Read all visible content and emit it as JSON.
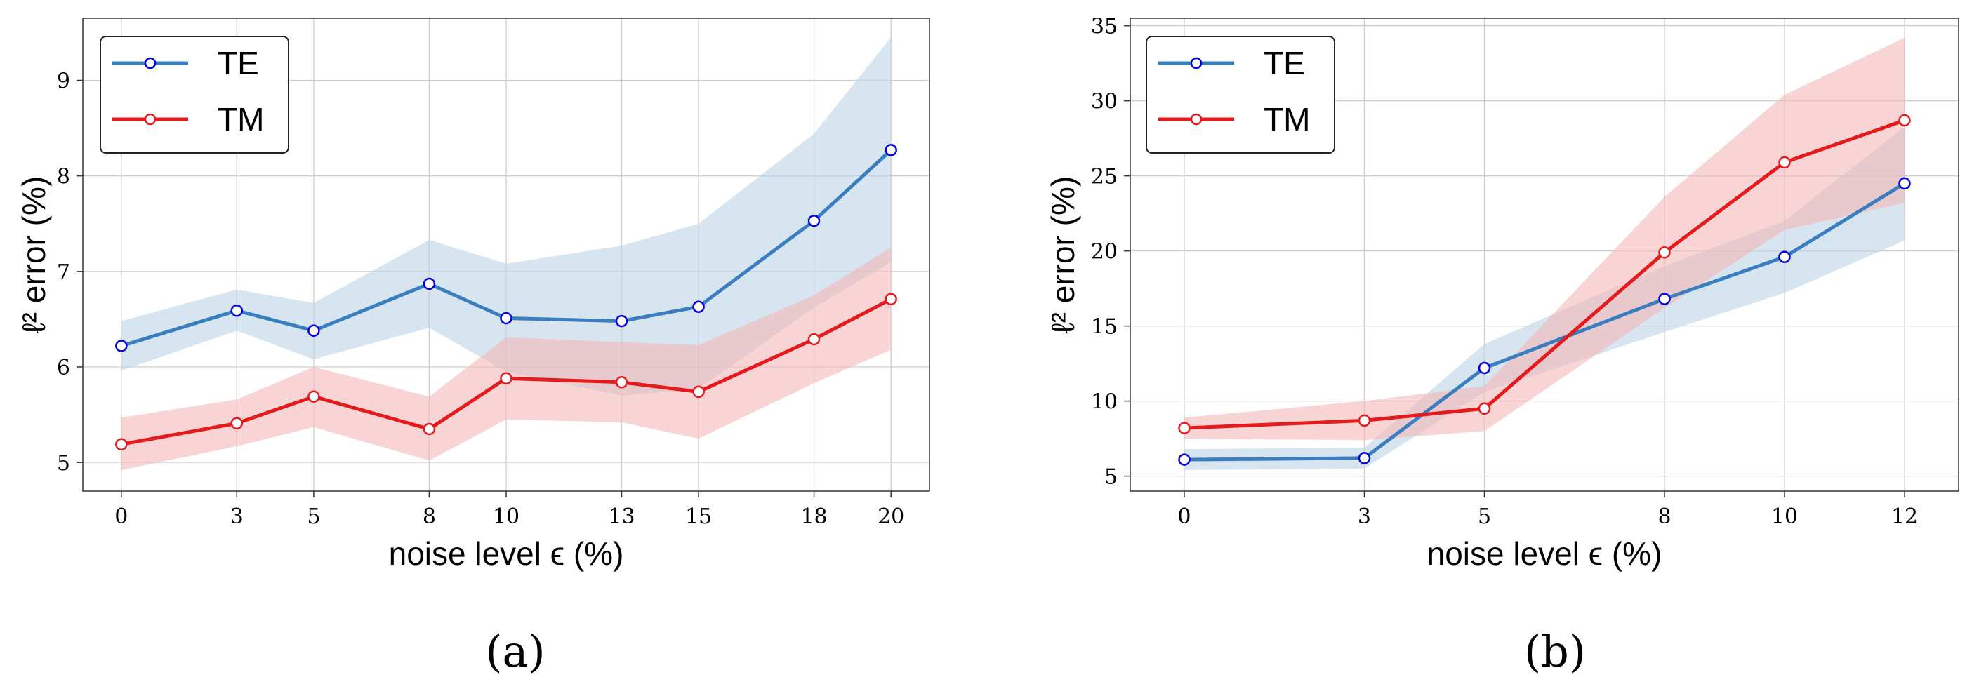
{
  "chart_data": [
    {
      "type": "line",
      "panel_label": "(a)",
      "xlabel": "noise level ϵ (%)",
      "ylabel": "ℓ² error (%)",
      "x": [
        0,
        3,
        5,
        8,
        10,
        13,
        15,
        18,
        20
      ],
      "x_tick_labels": [
        "0",
        "3",
        "5",
        "8",
        "10",
        "13",
        "15",
        "18",
        "20"
      ],
      "xlim": [
        -1,
        21
      ],
      "ylim": [
        4.7,
        9.65
      ],
      "y_ticks": [
        5,
        6,
        7,
        8,
        9
      ],
      "grid": true,
      "legend_position": "top-left",
      "series": [
        {
          "name": "TE",
          "color": "#3a7ebf",
          "band_color": "#bcd3e8",
          "values": [
            6.22,
            6.59,
            6.38,
            6.87,
            6.51,
            6.48,
            6.63,
            7.53,
            8.27
          ],
          "upper": [
            6.48,
            6.81,
            6.67,
            7.33,
            7.08,
            7.27,
            7.5,
            8.44,
            9.45
          ],
          "lower": [
            5.96,
            6.38,
            6.08,
            6.41,
            5.95,
            5.7,
            5.77,
            6.62,
            7.1
          ]
        },
        {
          "name": "TM",
          "color": "#e41a1c",
          "band_color": "#f4b7b8",
          "values": [
            5.19,
            5.41,
            5.69,
            5.35,
            5.88,
            5.84,
            5.74,
            6.29,
            6.71
          ],
          "upper": [
            5.47,
            5.66,
            6.0,
            5.69,
            6.31,
            6.26,
            6.23,
            6.75,
            7.25
          ],
          "lower": [
            4.92,
            5.17,
            5.37,
            5.02,
            5.45,
            5.42,
            5.25,
            5.83,
            6.18
          ]
        }
      ]
    },
    {
      "type": "line",
      "panel_label": "(b)",
      "xlabel": "noise level ϵ (%)",
      "ylabel": "ℓ² error (%)",
      "x": [
        0,
        3,
        5,
        8,
        10,
        12
      ],
      "x_tick_labels": [
        "0",
        "3",
        "5",
        "8",
        "10",
        "12"
      ],
      "xlim": [
        -0.9,
        12.9
      ],
      "ylim": [
        4.0,
        35.5
      ],
      "y_ticks": [
        5,
        10,
        15,
        20,
        25,
        30,
        35
      ],
      "grid": true,
      "legend_position": "top-left",
      "series": [
        {
          "name": "TE",
          "color": "#3a7ebf",
          "band_color": "#bcd3e8",
          "values": [
            6.1,
            6.2,
            12.2,
            16.8,
            19.6,
            24.5
          ],
          "upper": [
            6.8,
            6.9,
            13.8,
            19.0,
            22.0,
            28.3
          ],
          "lower": [
            5.4,
            5.5,
            10.6,
            14.6,
            17.2,
            20.7
          ]
        },
        {
          "name": "TM",
          "color": "#e41a1c",
          "band_color": "#f4b7b8",
          "values": [
            8.2,
            8.7,
            9.5,
            19.9,
            25.9,
            28.7
          ],
          "upper": [
            8.9,
            10.0,
            11.0,
            23.6,
            30.4,
            34.2
          ],
          "lower": [
            7.5,
            7.4,
            8.0,
            16.2,
            21.4,
            23.2
          ]
        }
      ]
    }
  ]
}
